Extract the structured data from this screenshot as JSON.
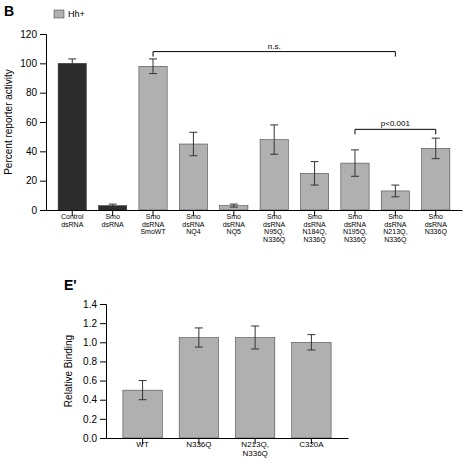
{
  "chart_data": [
    {
      "type": "bar",
      "title": "B",
      "ylabel": "Percent reporter activity",
      "categories": [
        "Control\ndsRNA",
        "Smo\ndsRNA",
        "Smo\ndsRNA\nSmoWT",
        "Smo\ndsRNA\nNQ4",
        "Smo\ndsRNA\nNQ5",
        "Smo\ndsRNA\nN95Q,\nN336Q",
        "Smo\ndsRNA\nN184Q,\nN336Q",
        "Smo\ndsRNA\nN195Q,\nN336Q",
        "Smo\ndsRNA\nN213Q,\nN336Q",
        "Smo\ndsRNA\nN336Q"
      ],
      "series": [
        {
          "name": "Hh+",
          "color": "#b0b0b0",
          "colors": [
            "#2c2c2c",
            "#2c2c2c",
            "#b0b0b0",
            "#b0b0b0",
            "#b0b0b0",
            "#b0b0b0",
            "#b0b0b0",
            "#b0b0b0",
            "#b0b0b0",
            "#b0b0b0"
          ],
          "values": [
            100,
            3,
            98,
            45,
            3,
            48,
            25,
            32,
            13,
            42
          ],
          "errors": [
            3,
            1,
            5,
            8,
            1,
            10,
            8,
            9,
            4,
            7
          ]
        }
      ],
      "ylim": [
        0,
        120
      ],
      "yticks": [
        0,
        20,
        40,
        60,
        80,
        100,
        120
      ],
      "grid": false,
      "legend": "upper left",
      "annotations": [
        {
          "text": "n.s.",
          "x": [
            2,
            8
          ],
          "y": 108
        },
        {
          "text": "p<0.001",
          "x": [
            7,
            9
          ],
          "y": 55
        }
      ]
    },
    {
      "type": "bar",
      "title": "E'",
      "ylabel": "Relative Binding",
      "categories": [
        "WT",
        "N336Q",
        "N213Q,\nN336Q",
        "C320A"
      ],
      "values": [
        0.5,
        1.05,
        1.05,
        1.0
      ],
      "errors": [
        0.1,
        0.1,
        0.12,
        0.08
      ],
      "color": "#b0b0b0",
      "ylim": [
        0,
        1.4
      ],
      "yticks": [
        {
          "value": 0,
          "label": "0.0"
        },
        0.2,
        0.4,
        0.6,
        0.8,
        {
          "value": 1,
          "label": "1.0"
        },
        1.2,
        1.4
      ],
      "grid": false
    }
  ]
}
